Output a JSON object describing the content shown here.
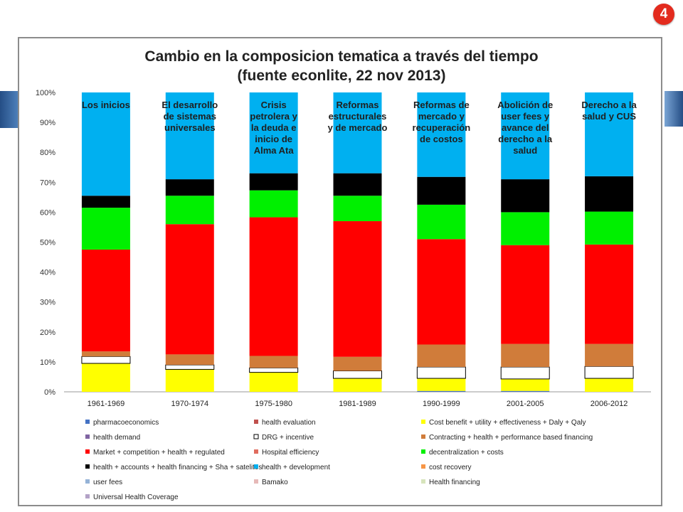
{
  "slide": {
    "badge": "4"
  },
  "chart_data": {
    "type": "bar",
    "stacked": true,
    "title_line1": "Cambio en la composicion tematica a través del tiempo",
    "title_line2": "(fuente econlite, 22 nov 2013)",
    "categories": [
      "1961-1969",
      "1970-1974",
      "1975-1980",
      "1981-1989",
      "1990-1999",
      "2001-2005",
      "2006-2012"
    ],
    "period_annotations": [
      "Los inicios",
      "El desarrollo de sistemas universales",
      "Crisis petrolera y la deuda e inicio de Alma Ata",
      "Reformas estructurales y de mercado",
      "Reformas de mercado y recuperación de costos",
      "Abolición de user fees y avance del derecho a la salud",
      "Derecho a la salud y CUS"
    ],
    "ylim": [
      0,
      100
    ],
    "yticks": [
      "0%",
      "10%",
      "20%",
      "30%",
      "40%",
      "50%",
      "60%",
      "70%",
      "80%",
      "90%",
      "100%"
    ],
    "legend_position": "bottom",
    "series": [
      {
        "name": "pharmacoeconomics",
        "color": "#4472c4",
        "values": [
          0,
          0,
          0,
          0,
          0.3,
          0.3,
          0
        ]
      },
      {
        "name": "health evaluation",
        "color": "#c0504d",
        "values": [
          0,
          0,
          0,
          0,
          0,
          0,
          0
        ]
      },
      {
        "name": "Cost benefit + utility + effectiveness + Daly + Qaly",
        "color": "#ffff00",
        "values": [
          9.5,
          7.5,
          6.5,
          4.5,
          4.2,
          4.0,
          4.5
        ]
      },
      {
        "name": "health demand",
        "color": "#8064a2",
        "values": [
          0,
          0,
          0,
          0,
          0,
          0,
          0
        ]
      },
      {
        "name": "DRG + incentive",
        "color": "#ffffff",
        "values": [
          2.3,
          1.5,
          1.5,
          2.5,
          3.8,
          4.0,
          4.0
        ]
      },
      {
        "name": "Contracting + health + performance based financing",
        "color": "#d07c3a",
        "values": [
          1.7,
          3.5,
          4.0,
          4.7,
          7.5,
          7.7,
          7.5
        ]
      },
      {
        "name": "Market + competition + health + regulated",
        "color": "#ff0000",
        "values": [
          34,
          43.5,
          46.3,
          45.3,
          35.2,
          33.0,
          33.2
        ]
      },
      {
        "name": "Hospital efficiency",
        "color": "#e06c5e",
        "values": [
          0,
          0,
          0,
          0,
          0,
          0,
          0
        ]
      },
      {
        "name": "decentralization + costs",
        "color": "#00f000",
        "values": [
          14,
          9.5,
          9.0,
          8.5,
          11.5,
          11.0,
          11.0
        ]
      },
      {
        "name": "health + accounts + health financing + Sha + satelites",
        "color": "#000000",
        "values": [
          4,
          5.5,
          5.7,
          7.5,
          9.3,
          11.0,
          11.8
        ]
      },
      {
        "name": "health + development",
        "color": "#00b0f0",
        "values": [
          34.5,
          29,
          27,
          27,
          28.2,
          29,
          28
        ]
      },
      {
        "name": "cost recovery",
        "color": "#f79646",
        "values": [
          0,
          0,
          0,
          0,
          0,
          0,
          0
        ]
      },
      {
        "name": "user fees",
        "color": "#95b3d7",
        "values": [
          0,
          0,
          0,
          0,
          0,
          0,
          0
        ]
      },
      {
        "name": "Bamako",
        "color": "#e6b9b8",
        "values": [
          0,
          0,
          0,
          0,
          0,
          0,
          0
        ]
      },
      {
        "name": "Health financing",
        "color": "#d7e4bc",
        "values": [
          0,
          0,
          0,
          0,
          0,
          0,
          0
        ]
      },
      {
        "name": "Universal Health Coverage",
        "color": "#b3a2c7",
        "values": [
          0,
          0,
          0,
          0,
          0,
          0,
          0
        ]
      }
    ]
  }
}
